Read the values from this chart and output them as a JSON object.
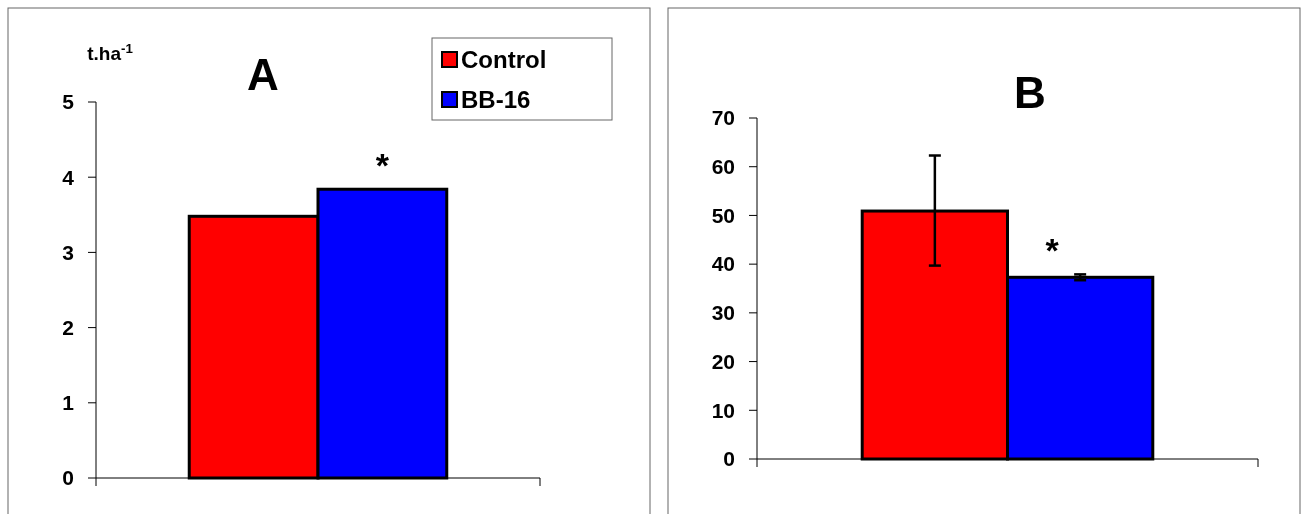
{
  "chart_data": [
    {
      "type": "bar",
      "title": "A",
      "ylabel": "t.ha$^{-1}$",
      "categories": [
        null
      ],
      "ylim": [
        0,
        5
      ],
      "yticks": [
        0,
        1,
        2,
        3,
        4,
        5
      ],
      "legend": "top right",
      "annotations": [
        "*"
      ],
      "series": [
        {
          "name": "Control",
          "color": "#ff0000",
          "values": [
            3.48
          ]
        },
        {
          "name": "BB-16",
          "color": "#0000ff",
          "values": [
            3.84
          ]
        }
      ]
    },
    {
      "type": "bar",
      "title": "B",
      "categories": [
        null
      ],
      "ylim": [
        0,
        70
      ],
      "yticks": [
        0,
        10,
        20,
        30,
        40,
        50,
        60,
        70
      ],
      "annotations": [
        "*"
      ],
      "series": [
        {
          "color": "#ff0000",
          "values": [
            50.9
          ],
          "errors": [
            [
              39.7,
              62.3
            ]
          ]
        },
        {
          "color": "#0000ff",
          "values": [
            37.3
          ],
          "errors": [
            0.6
          ]
        }
      ]
    }
  ]
}
